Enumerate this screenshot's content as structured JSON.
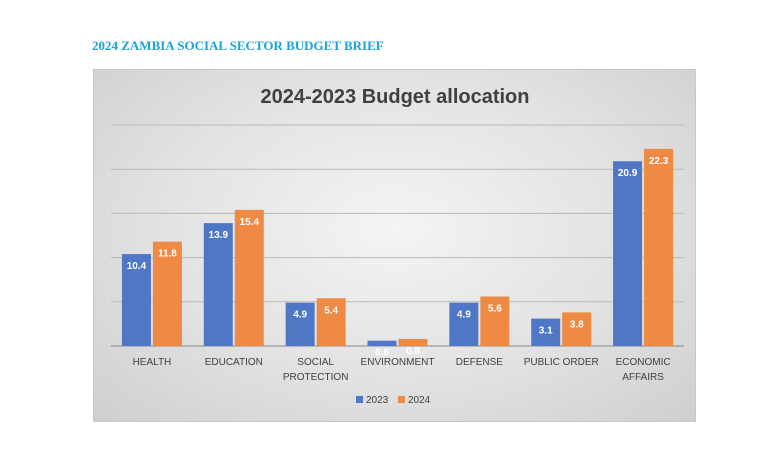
{
  "header": {
    "title": "2024 ZAMBIA SOCIAL SECTOR BUDGET BRIEF"
  },
  "colors": {
    "header": "#1ba3d8",
    "series_2023": "#4f77c6",
    "series_2024": "#ee8a44"
  },
  "chart_data": {
    "type": "bar",
    "title": "2024-2023 Budget allocation",
    "categories": [
      [
        "HEALTH"
      ],
      [
        "EDUCATION"
      ],
      [
        "SOCIAL",
        "PROTECTION"
      ],
      [
        "ENVIRONMENT"
      ],
      [
        "DEFENSE"
      ],
      [
        "PUBLIC ORDER"
      ],
      [
        "ECONOMIC",
        "AFFAIRS"
      ]
    ],
    "series": [
      {
        "name": "2023",
        "values": [
          10.4,
          13.9,
          4.9,
          0.6,
          4.9,
          3.1,
          20.9
        ],
        "color": "#4f77c6"
      },
      {
        "name": "2024",
        "values": [
          11.8,
          15.4,
          5.4,
          0.8,
          5.6,
          3.8,
          22.3
        ],
        "color": "#ee8a44"
      }
    ],
    "ylim": [
      0,
      25
    ],
    "grid": true,
    "legend": "bottom-center",
    "xlabel": "",
    "ylabel": ""
  }
}
